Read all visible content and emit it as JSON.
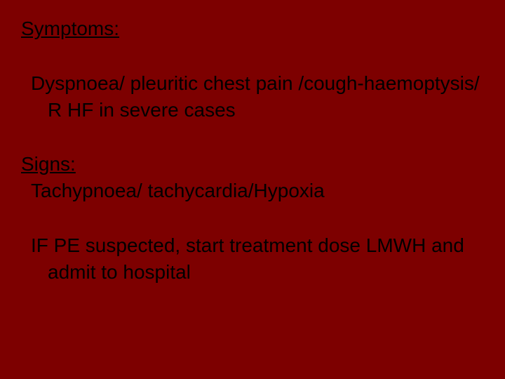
{
  "slide": {
    "background_color": "#7d0000",
    "text_color": "#000000",
    "font_family": "Arial",
    "font_size_pt": 21,
    "sections": {
      "symptoms": {
        "heading": "Symptoms:",
        "body": "Dyspnoea/ pleuritic chest pain /cough-haemoptysis/ R HF in severe cases"
      },
      "signs": {
        "heading": "Signs:",
        "body": "Tachypnoea/ tachycardia/Hypoxia"
      },
      "action": {
        "body": "IF PE suspected, start treatment dose LMWH and admit to hospital"
      }
    }
  }
}
